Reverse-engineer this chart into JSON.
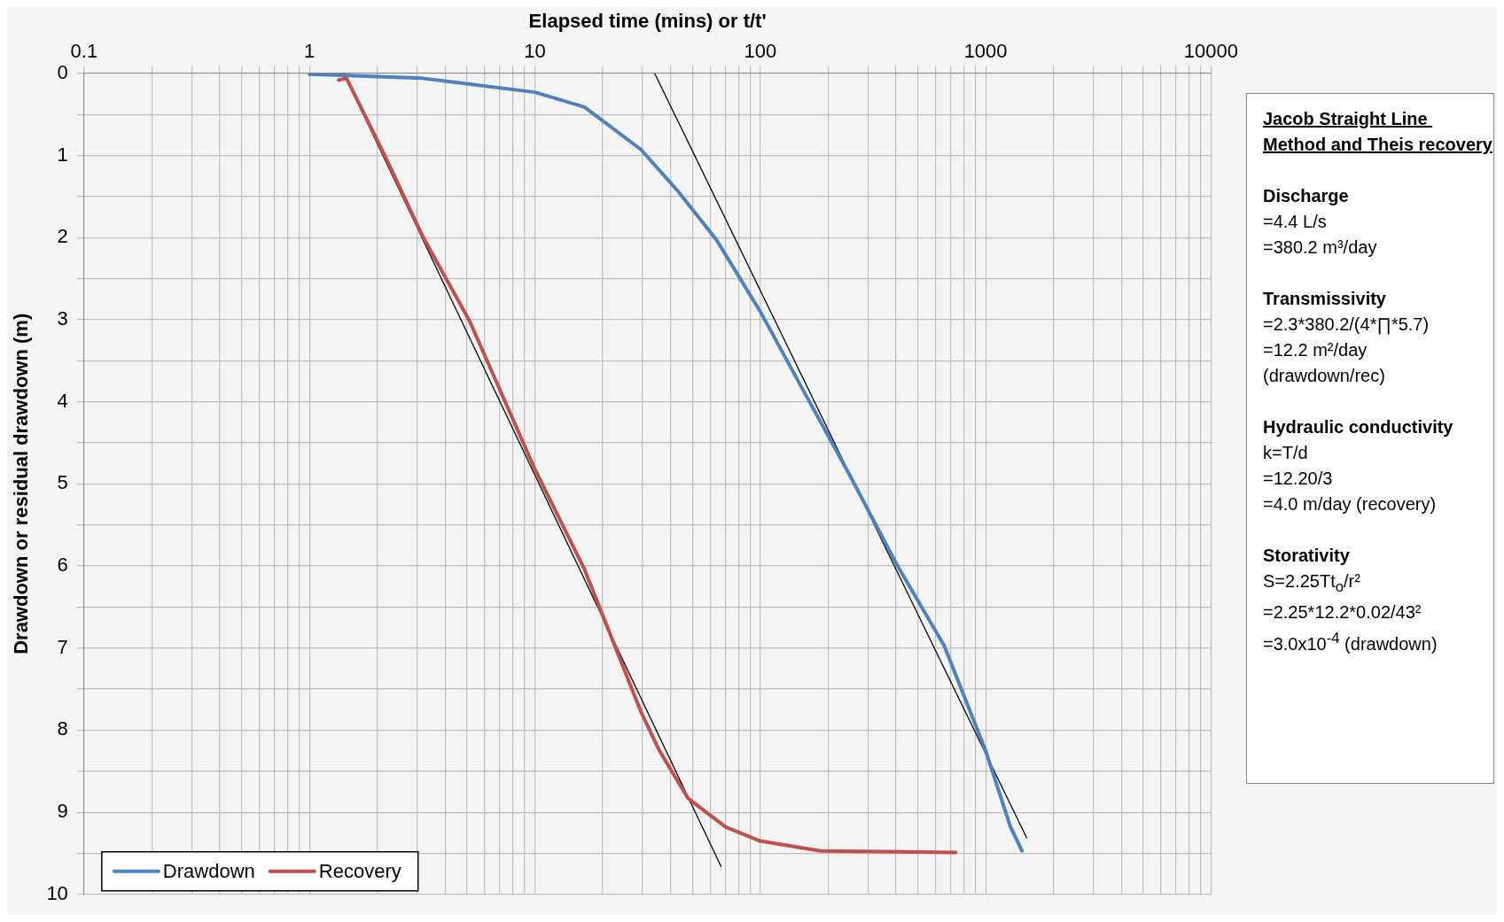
{
  "chart_data": {
    "type": "line",
    "xlabel": "Elapsed time (mins) or t/t'",
    "ylabel": "Drawdown or residual drawdown (m)",
    "log": "x",
    "xlim": [
      0.1,
      10000
    ],
    "ylim": [
      10,
      0
    ],
    "xticks": [
      0.1,
      {
        "value": 0.2,
        "label": null
      },
      {
        "value": 0.3,
        "label": null
      },
      {
        "value": 0.4,
        "label": null
      },
      {
        "value": 0.5,
        "label": null
      },
      {
        "value": 0.6,
        "label": null
      },
      {
        "value": 0.7,
        "label": null
      },
      {
        "value": 0.8,
        "label": null
      },
      {
        "value": 0.9,
        "label": null
      },
      1,
      {
        "value": 2,
        "label": null
      },
      {
        "value": 3,
        "label": null
      },
      {
        "value": 4,
        "label": null
      },
      {
        "value": 5,
        "label": null
      },
      {
        "value": 6,
        "label": null
      },
      {
        "value": 7,
        "label": null
      },
      {
        "value": 8,
        "label": null
      },
      {
        "value": 9,
        "label": null
      },
      10,
      {
        "value": 20,
        "label": null
      },
      {
        "value": 30,
        "label": null
      },
      {
        "value": 40,
        "label": null
      },
      {
        "value": 50,
        "label": null
      },
      {
        "value": 60,
        "label": null
      },
      {
        "value": 70,
        "label": null
      },
      {
        "value": 80,
        "label": null
      },
      {
        "value": 90,
        "label": null
      },
      100,
      {
        "value": 200,
        "label": null
      },
      {
        "value": 300,
        "label": null
      },
      {
        "value": 400,
        "label": null
      },
      {
        "value": 500,
        "label": null
      },
      {
        "value": 600,
        "label": null
      },
      {
        "value": 700,
        "label": null
      },
      {
        "value": 800,
        "label": null
      },
      {
        "value": 900,
        "label": null
      },
      1000,
      {
        "value": 2000,
        "label": null
      },
      {
        "value": 3000,
        "label": null
      },
      {
        "value": 4000,
        "label": null
      },
      {
        "value": 5000,
        "label": null
      },
      {
        "value": 6000,
        "label": null
      },
      {
        "value": 7000,
        "label": null
      },
      {
        "value": 8000,
        "label": null
      },
      {
        "value": 9000,
        "label": null
      },
      10000
    ],
    "yticks": [
      0,
      {
        "value": 0.5,
        "label": null
      },
      1,
      {
        "value": 1.5,
        "label": null
      },
      2,
      {
        "value": 2.5,
        "label": null
      },
      3,
      {
        "value": 3.5,
        "label": null
      },
      4,
      {
        "value": 4.5,
        "label": null
      },
      5,
      {
        "value": 5.5,
        "label": null
      },
      6,
      {
        "value": 6.5,
        "label": null
      },
      7,
      {
        "value": 7.5,
        "label": null
      },
      8,
      {
        "value": 8.5,
        "label": null
      },
      9,
      {
        "value": 9.5,
        "label": null
      },
      10
    ],
    "grid": true,
    "legend": "bottom left",
    "marker": "none",
    "line_style": "solid",
    "series": [
      {
        "name": "Drawdown",
        "color": "#4f81bd",
        "x": [
          1,
          3.16,
          10,
          16.6,
          29.6,
          43.6,
          64,
          100,
          153,
          248,
          403,
          655,
          1000,
          1290,
          1450
        ],
        "values": [
          0.01,
          0.06,
          0.23,
          0.41,
          0.93,
          1.45,
          2.03,
          2.9,
          3.83,
          4.88,
          5.98,
          6.97,
          8.25,
          9.18,
          9.47
        ]
      },
      {
        "name": "Recovery",
        "color": "#c0504d",
        "x": [
          1.35,
          1.46,
          2.15,
          3.16,
          5.14,
          10,
          16.6,
          29.6,
          35.7,
          47.8,
          70.4,
          100,
          185,
          735
        ],
        "values": [
          0.08,
          0.06,
          0.99,
          1.97,
          3.02,
          4.82,
          6.04,
          7.78,
          8.25,
          8.83,
          9.18,
          9.35,
          9.47,
          9.49
        ]
      },
      {
        "color": "#000000",
        "x": [
          34,
          1520
        ],
        "values": [
          0,
          9.31
        ]
      },
      {
        "color": "#000000",
        "x": [
          1.42,
          67
        ],
        "values": [
          0,
          9.66
        ]
      }
    ],
    "annotations": [
      "Jacob Straight Line Method and Theis recovery",
      "Discharge\n=4.4 L/s\n=380.2 m³/day",
      "Transmissivity\n=2.3*380.2/(4*∏*5.7)\n=12.2 m²/day\n(drawdown/rec)",
      "Hydraulic conductivity\nk=T/d\n=12.20/3\n=4.0 m/day (recovery)",
      "Storativity\nS=2.25Tt$_{o}$/r²\n=2.25*12.2*0.02/43²\n=3.0x10$^{-4}$ (drawdown)"
    ]
  }
}
